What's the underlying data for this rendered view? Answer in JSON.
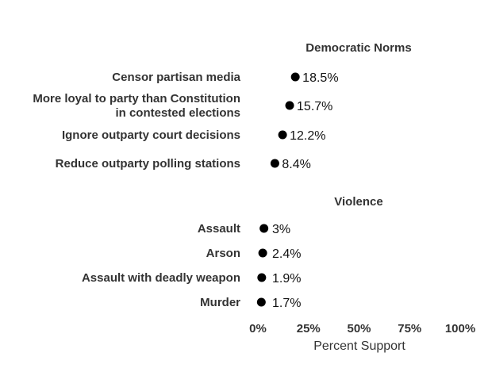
{
  "chart_data": {
    "type": "scatter",
    "xlabel": "Percent Support",
    "xlim": [
      0,
      100
    ],
    "x_ticks": [
      "0%",
      "25%",
      "50%",
      "75%",
      "100%"
    ],
    "x_tick_values": [
      0,
      25,
      50,
      75,
      100
    ],
    "grid": false,
    "panels": [
      {
        "title": "Democratic Norms",
        "categories": [
          [
            "Censor partisan media"
          ],
          [
            "More loyal to party than Constitution",
            "in contested elections"
          ],
          [
            "Ignore outparty court decisions"
          ],
          [
            "Reduce outparty polling stations"
          ]
        ],
        "values": [
          18.5,
          15.7,
          12.2,
          8.4
        ],
        "value_labels": [
          "18.5%",
          "15.7%",
          "12.2%",
          "8.4%"
        ]
      },
      {
        "title": "Violence",
        "categories": [
          [
            "Assault"
          ],
          [
            "Arson"
          ],
          [
            "Assault with deadly weapon"
          ],
          [
            "Murder"
          ]
        ],
        "values": [
          3,
          2.4,
          1.9,
          1.7
        ],
        "value_labels": [
          "3%",
          "2.4%",
          "1.9%",
          "1.7%"
        ]
      }
    ]
  }
}
